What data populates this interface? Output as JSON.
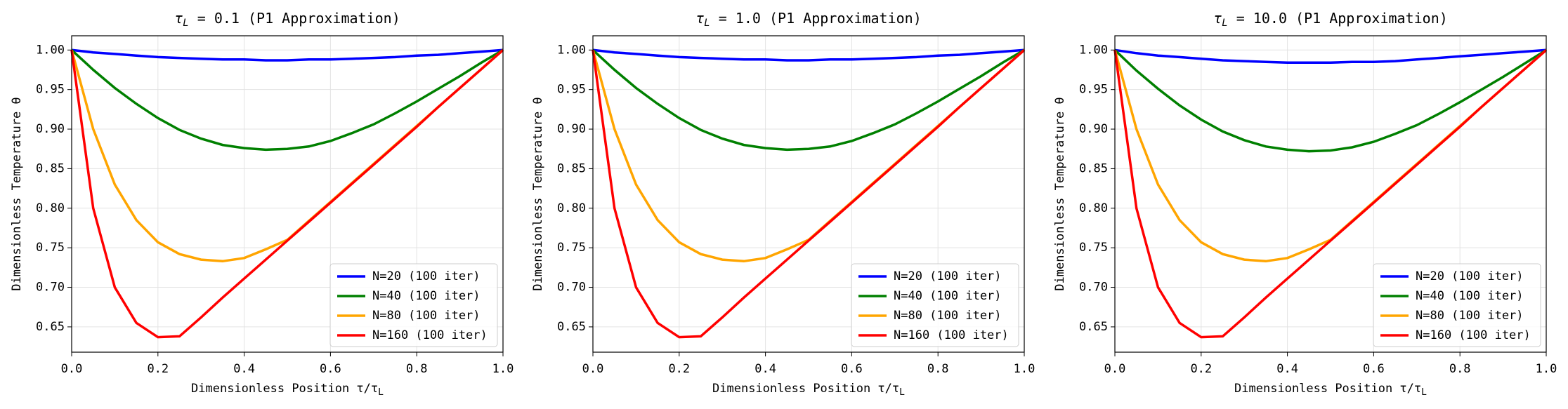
{
  "chart_data": [
    {
      "type": "line",
      "title_symbol": "τ",
      "title_subscript": "L",
      "title": " = 0.1 (P1 Approximation)",
      "xlabel": "Dimensionless Position τ/τ",
      "xlabel_subscript": "L",
      "ylabel": "Dimensionless Temperature θ",
      "x": [
        0,
        0.05,
        0.1,
        0.15,
        0.2,
        0.25,
        0.3,
        0.35,
        0.4,
        0.45,
        0.5,
        0.55,
        0.6,
        0.65,
        0.7,
        0.75,
        0.8,
        0.85,
        0.9,
        0.95,
        1
      ],
      "xlim": [
        0,
        1
      ],
      "xticks": [
        {
          "value": 0,
          "label": "0.0"
        },
        0.2,
        0.4,
        0.6,
        0.8,
        {
          "value": 1,
          "label": "1.0"
        }
      ],
      "ylim": [
        0.618,
        1.018
      ],
      "yticks": [
        0.65,
        {
          "value": 0.7,
          "label": "0.70"
        },
        0.75,
        {
          "value": 0.8,
          "label": "0.80"
        },
        0.85,
        {
          "value": 0.9,
          "label": "0.90"
        },
        0.95,
        {
          "value": 1,
          "label": "1.00"
        }
      ],
      "grid": true,
      "legend": "lower right",
      "series": [
        {
          "name": "N=20 (100 iter)",
          "color": "#0000ff",
          "values": [
            1,
            0.997,
            0.995,
            0.993,
            0.991,
            0.99,
            0.989,
            0.988,
            0.988,
            0.987,
            0.987,
            0.988,
            0.988,
            0.989,
            0.99,
            0.991,
            0.993,
            0.994,
            0.996,
            0.998,
            1
          ]
        },
        {
          "name": "N=40 (100 iter)",
          "color": "#008000",
          "values": [
            1,
            0.975,
            0.952,
            0.932,
            0.914,
            0.899,
            0.888,
            0.88,
            0.876,
            0.874,
            0.875,
            0.878,
            0.885,
            0.895,
            0.906,
            0.92,
            0.935,
            0.951,
            0.967,
            0.984,
            1
          ]
        },
        {
          "name": "N=80 (100 iter)",
          "color": "#ffa500",
          "values": [
            1,
            0.9,
            0.83,
            0.785,
            0.757,
            0.742,
            0.735,
            0.733,
            0.737,
            0.748,
            0.76,
            0.784,
            0.808,
            0.832,
            0.856,
            0.88,
            0.904,
            0.928,
            0.952,
            0.976,
            1
          ]
        },
        {
          "name": "N=160 (100 iter)",
          "color": "#ff0000",
          "values": [
            1,
            0.8,
            0.7,
            0.655,
            0.637,
            0.638,
            0.662,
            0.687,
            0.711,
            0.735,
            0.759,
            0.783,
            0.807,
            0.831,
            0.855,
            0.879,
            0.903,
            0.928,
            0.952,
            0.976,
            1
          ]
        }
      ]
    },
    {
      "type": "line",
      "title_symbol": "τ",
      "title_subscript": "L",
      "title": " = 1.0 (P1 Approximation)",
      "xlabel": "Dimensionless Position τ/τ",
      "xlabel_subscript": "L",
      "ylabel": "Dimensionless Temperature θ",
      "x": [
        0,
        0.05,
        0.1,
        0.15,
        0.2,
        0.25,
        0.3,
        0.35,
        0.4,
        0.45,
        0.5,
        0.55,
        0.6,
        0.65,
        0.7,
        0.75,
        0.8,
        0.85,
        0.9,
        0.95,
        1
      ],
      "xlim": [
        0,
        1
      ],
      "xticks": [
        {
          "value": 0,
          "label": "0.0"
        },
        0.2,
        0.4,
        0.6,
        0.8,
        {
          "value": 1,
          "label": "1.0"
        }
      ],
      "ylim": [
        0.618,
        1.018
      ],
      "yticks": [
        0.65,
        {
          "value": 0.7,
          "label": "0.70"
        },
        0.75,
        {
          "value": 0.8,
          "label": "0.80"
        },
        0.85,
        {
          "value": 0.9,
          "label": "0.90"
        },
        0.95,
        {
          "value": 1,
          "label": "1.00"
        }
      ],
      "grid": true,
      "legend": "lower right",
      "series": [
        {
          "name": "N=20 (100 iter)",
          "color": "#0000ff",
          "values": [
            1,
            0.997,
            0.995,
            0.993,
            0.991,
            0.99,
            0.989,
            0.988,
            0.988,
            0.987,
            0.987,
            0.988,
            0.988,
            0.989,
            0.99,
            0.991,
            0.993,
            0.994,
            0.996,
            0.998,
            1
          ]
        },
        {
          "name": "N=40 (100 iter)",
          "color": "#008000",
          "values": [
            1,
            0.975,
            0.952,
            0.932,
            0.914,
            0.899,
            0.888,
            0.88,
            0.876,
            0.874,
            0.875,
            0.878,
            0.885,
            0.895,
            0.906,
            0.92,
            0.935,
            0.951,
            0.967,
            0.984,
            1
          ]
        },
        {
          "name": "N=80 (100 iter)",
          "color": "#ffa500",
          "values": [
            1,
            0.9,
            0.83,
            0.785,
            0.757,
            0.742,
            0.735,
            0.733,
            0.737,
            0.748,
            0.76,
            0.784,
            0.808,
            0.832,
            0.856,
            0.88,
            0.904,
            0.928,
            0.952,
            0.976,
            1
          ]
        },
        {
          "name": "N=160 (100 iter)",
          "color": "#ff0000",
          "values": [
            1,
            0.8,
            0.7,
            0.655,
            0.637,
            0.638,
            0.662,
            0.687,
            0.711,
            0.735,
            0.759,
            0.783,
            0.807,
            0.831,
            0.855,
            0.879,
            0.903,
            0.928,
            0.952,
            0.976,
            1
          ]
        }
      ]
    },
    {
      "type": "line",
      "title_symbol": "τ",
      "title_subscript": "L",
      "title": " = 10.0 (P1 Approximation)",
      "xlabel": "Dimensionless Position τ/τ",
      "xlabel_subscript": "L",
      "ylabel": "Dimensionless Temperature θ",
      "x": [
        0,
        0.05,
        0.1,
        0.15,
        0.2,
        0.25,
        0.3,
        0.35,
        0.4,
        0.45,
        0.5,
        0.55,
        0.6,
        0.65,
        0.7,
        0.75,
        0.8,
        0.85,
        0.9,
        0.95,
        1
      ],
      "xlim": [
        0,
        1
      ],
      "xticks": [
        {
          "value": 0,
          "label": "0.0"
        },
        0.2,
        0.4,
        0.6,
        0.8,
        {
          "value": 1,
          "label": "1.0"
        }
      ],
      "ylim": [
        0.618,
        1.018
      ],
      "yticks": [
        0.65,
        {
          "value": 0.7,
          "label": "0.70"
        },
        0.75,
        {
          "value": 0.8,
          "label": "0.80"
        },
        0.85,
        {
          "value": 0.9,
          "label": "0.90"
        },
        0.95,
        {
          "value": 1,
          "label": "1.00"
        }
      ],
      "grid": true,
      "legend": "lower right",
      "series": [
        {
          "name": "N=20 (100 iter)",
          "color": "#0000ff",
          "values": [
            1,
            0.996,
            0.993,
            0.991,
            0.989,
            0.987,
            0.986,
            0.985,
            0.984,
            0.984,
            0.984,
            0.985,
            0.985,
            0.986,
            0.988,
            0.99,
            0.992,
            0.994,
            0.996,
            0.998,
            1
          ]
        },
        {
          "name": "N=40 (100 iter)",
          "color": "#008000",
          "values": [
            1,
            0.974,
            0.951,
            0.93,
            0.912,
            0.897,
            0.886,
            0.878,
            0.874,
            0.872,
            0.873,
            0.877,
            0.884,
            0.894,
            0.905,
            0.919,
            0.934,
            0.95,
            0.966,
            0.983,
            1
          ]
        },
        {
          "name": "N=80 (100 iter)",
          "color": "#ffa500",
          "values": [
            1,
            0.9,
            0.83,
            0.785,
            0.757,
            0.742,
            0.735,
            0.733,
            0.737,
            0.748,
            0.76,
            0.784,
            0.808,
            0.832,
            0.856,
            0.88,
            0.904,
            0.928,
            0.952,
            0.976,
            1
          ]
        },
        {
          "name": "N=160 (100 iter)",
          "color": "#ff0000",
          "values": [
            1,
            0.8,
            0.7,
            0.655,
            0.637,
            0.638,
            0.662,
            0.687,
            0.711,
            0.735,
            0.759,
            0.783,
            0.807,
            0.831,
            0.855,
            0.879,
            0.903,
            0.928,
            0.952,
            0.976,
            1
          ]
        }
      ]
    }
  ]
}
